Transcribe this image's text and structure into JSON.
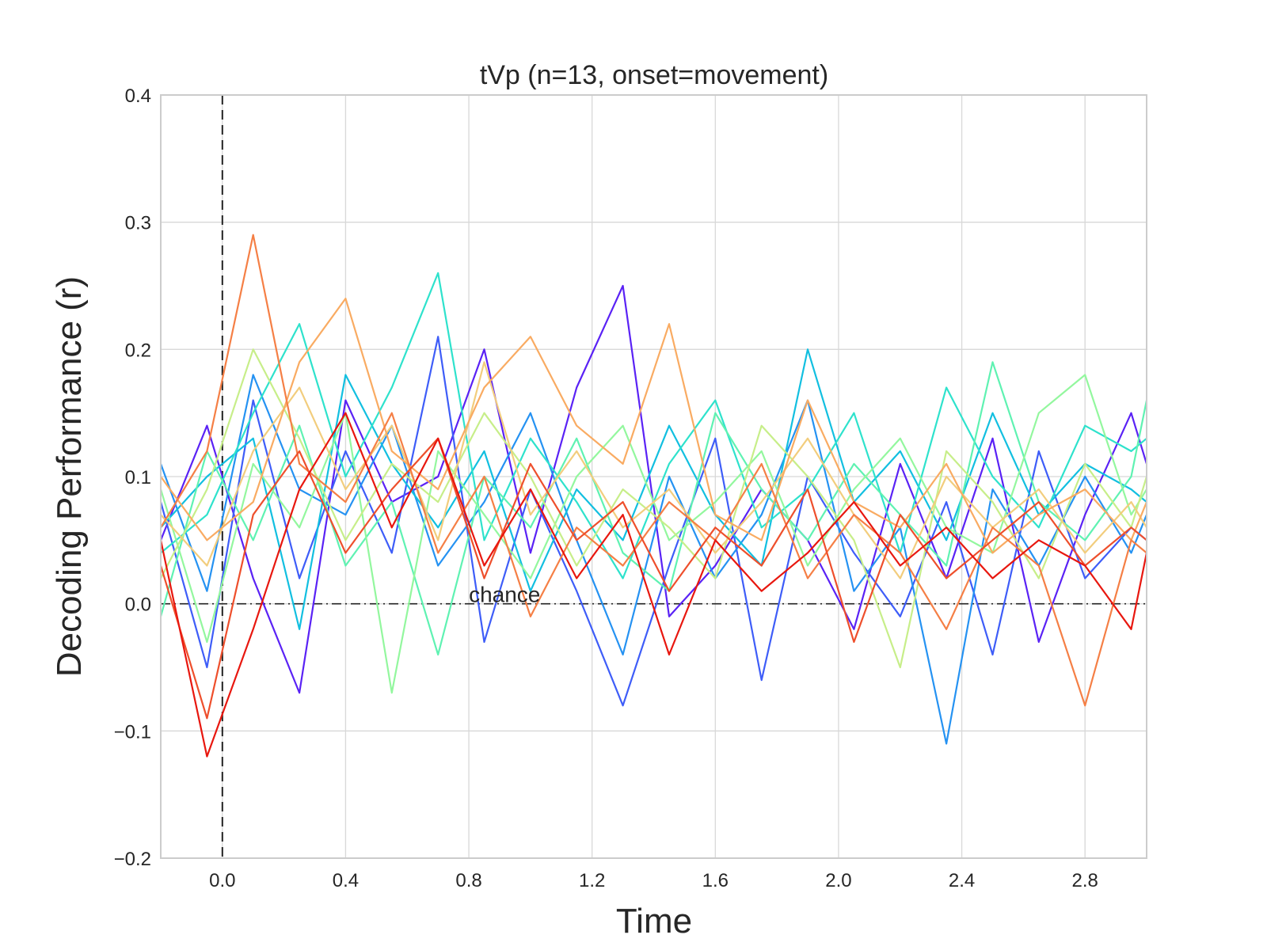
{
  "chart_data": {
    "type": "line",
    "title": "tVp (n=13, onset=movement)",
    "xlabel": "Time",
    "ylabel": "Decoding Performance (r)",
    "xlim": [
      -0.2,
      3.0
    ],
    "ylim": [
      -0.2,
      0.4
    ],
    "xticks": [
      0.0,
      0.4,
      0.8,
      1.2,
      1.6,
      2.0,
      2.4,
      2.8
    ],
    "xtick_labels": [
      "0.0",
      "0.4",
      "0.8",
      "1.2",
      "1.6",
      "2.0",
      "2.4",
      "2.8"
    ],
    "yticks": [
      -0.2,
      -0.1,
      0.0,
      0.1,
      0.2,
      0.3,
      0.4
    ],
    "ytick_labels": [
      "−0.2",
      "−0.1",
      "0.0",
      "0.1",
      "0.2",
      "0.3",
      "0.4"
    ],
    "grid": true,
    "legend": "none",
    "colormap": "rainbow",
    "onset_line": {
      "x": 0.0,
      "style": "dashed",
      "color": "#222222"
    },
    "chance_line": {
      "y": 0.0,
      "style": "dashdot",
      "color": "#222222"
    },
    "annotations": [
      {
        "text": "chance",
        "x": 0.8,
        "y": 0.0
      }
    ],
    "x": [
      -0.2,
      -0.05,
      0.1,
      0.25,
      0.4,
      0.55,
      0.7,
      0.85,
      1.0,
      1.15,
      1.3,
      1.45,
      1.6,
      1.75,
      1.9,
      2.05,
      2.2,
      2.35,
      2.5,
      2.65,
      2.8,
      2.95,
      3.0
    ],
    "series": [
      {
        "color": "#5a22f5",
        "values": [
          0.05,
          0.14,
          0.02,
          -0.07,
          0.16,
          0.08,
          0.1,
          0.2,
          0.04,
          0.17,
          0.25,
          -0.01,
          0.03,
          0.09,
          0.05,
          -0.02,
          0.11,
          0.02,
          0.13,
          -0.03,
          0.07,
          0.15,
          0.11
        ]
      },
      {
        "color": "#3e5df8",
        "values": [
          0.08,
          -0.05,
          0.16,
          0.02,
          0.12,
          0.04,
          0.21,
          -0.03,
          0.09,
          0.01,
          -0.08,
          0.03,
          0.13,
          -0.06,
          0.1,
          0.04,
          -0.01,
          0.08,
          -0.04,
          0.12,
          0.02,
          0.06,
          0.05
        ]
      },
      {
        "color": "#2592f2",
        "values": [
          0.11,
          0.01,
          0.18,
          0.09,
          0.07,
          0.14,
          0.03,
          0.08,
          0.15,
          0.05,
          -0.04,
          0.1,
          0.02,
          0.07,
          0.16,
          0.01,
          0.06,
          -0.11,
          0.09,
          0.03,
          0.1,
          0.04,
          0.07
        ]
      },
      {
        "color": "#12bfe0",
        "values": [
          0.06,
          0.1,
          0.13,
          -0.02,
          0.18,
          0.11,
          0.06,
          0.12,
          0.01,
          0.09,
          0.05,
          0.14,
          0.07,
          0.03,
          0.2,
          0.08,
          0.12,
          0.05,
          0.15,
          0.07,
          0.11,
          0.09,
          0.08
        ]
      },
      {
        "color": "#2ee2cc",
        "values": [
          0.04,
          0.07,
          0.15,
          0.22,
          0.1,
          0.17,
          0.26,
          0.05,
          0.13,
          0.08,
          0.02,
          0.11,
          0.16,
          0.06,
          0.09,
          0.15,
          0.04,
          0.17,
          0.1,
          0.06,
          0.14,
          0.12,
          0.13
        ]
      },
      {
        "color": "#5ff2b2",
        "values": [
          -0.01,
          0.12,
          0.05,
          0.14,
          0.03,
          0.08,
          -0.04,
          0.1,
          0.06,
          0.13,
          0.04,
          0.01,
          0.15,
          0.09,
          0.05,
          0.11,
          0.07,
          0.03,
          0.19,
          0.08,
          0.05,
          0.1,
          0.16
        ]
      },
      {
        "color": "#93f79e",
        "values": [
          0.09,
          -0.03,
          0.11,
          0.06,
          0.15,
          -0.07,
          0.12,
          0.07,
          0.02,
          0.1,
          0.14,
          0.05,
          0.08,
          0.12,
          0.03,
          0.09,
          0.13,
          0.06,
          0.04,
          0.15,
          0.18,
          0.07,
          0.09
        ]
      },
      {
        "color": "#c7ee89",
        "values": [
          0.02,
          0.09,
          0.2,
          0.13,
          0.05,
          0.11,
          0.08,
          0.15,
          0.1,
          0.03,
          0.09,
          0.06,
          0.02,
          0.14,
          0.1,
          0.05,
          -0.05,
          0.12,
          0.08,
          0.02,
          0.11,
          0.06,
          0.1
        ]
      },
      {
        "color": "#f2cd7d",
        "values": [
          0.07,
          0.03,
          0.12,
          0.17,
          0.09,
          0.14,
          0.05,
          0.19,
          0.07,
          0.12,
          0.06,
          0.09,
          0.04,
          0.08,
          0.13,
          0.07,
          0.02,
          0.1,
          0.06,
          0.09,
          0.04,
          0.08,
          0.06
        ]
      },
      {
        "color": "#f9ab62",
        "values": [
          0.1,
          0.05,
          0.08,
          0.19,
          0.24,
          0.12,
          0.09,
          0.17,
          0.21,
          0.14,
          0.11,
          0.22,
          0.07,
          0.05,
          0.16,
          0.08,
          0.06,
          0.11,
          0.04,
          0.07,
          0.09,
          0.05,
          0.08
        ]
      },
      {
        "color": "#f57f45",
        "values": [
          0.06,
          0.12,
          0.29,
          0.11,
          0.08,
          0.15,
          0.04,
          0.1,
          -0.01,
          0.06,
          0.03,
          0.08,
          0.05,
          0.11,
          0.02,
          0.07,
          0.04,
          -0.02,
          0.06,
          0.03,
          -0.08,
          0.05,
          0.04
        ]
      },
      {
        "color": "#ee4f2c",
        "values": [
          0.03,
          -0.09,
          0.07,
          0.12,
          0.04,
          0.09,
          0.13,
          0.02,
          0.11,
          0.05,
          0.08,
          0.01,
          0.06,
          0.03,
          0.09,
          -0.03,
          0.07,
          0.02,
          0.05,
          0.08,
          0.03,
          0.06,
          0.05
        ]
      },
      {
        "color": "#e8170f",
        "values": [
          0.05,
          -0.12,
          -0.02,
          0.09,
          0.15,
          0.06,
          0.13,
          0.03,
          0.09,
          0.02,
          0.07,
          -0.04,
          0.05,
          0.01,
          0.04,
          0.08,
          0.03,
          0.06,
          0.02,
          0.05,
          0.03,
          -0.02,
          0.04
        ]
      }
    ]
  }
}
